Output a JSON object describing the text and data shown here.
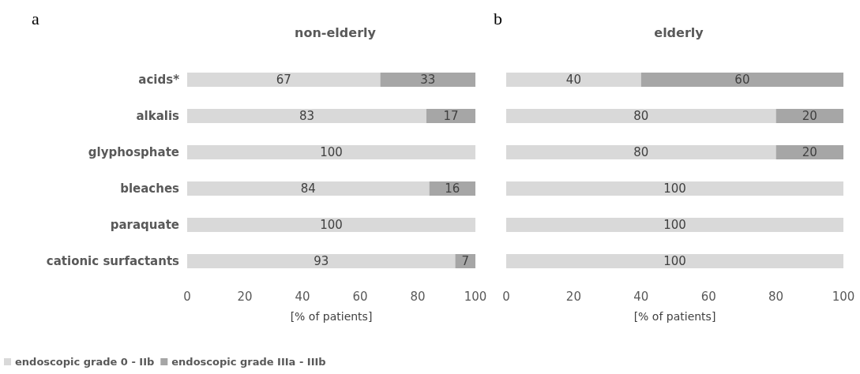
{
  "chart_data": [
    {
      "type": "bar",
      "orientation": "horizontal",
      "stacked": true,
      "title": "non-elderly",
      "xlabel": "[% of patients]",
      "annotations": [
        "a"
      ],
      "categories": [
        "acids*",
        "alkalis",
        "glyphosphate",
        "bleaches",
        "paraquate",
        "cationic surfactants"
      ],
      "series": [
        {
          "name": "endoscopic grade 0 - IIb",
          "color": "#d9d9d9",
          "values": [
            67,
            83,
            100,
            84,
            100,
            93
          ]
        },
        {
          "name": "endoscopic grade IIIa - IIIb",
          "color": "#a6a6a6",
          "values": [
            33,
            17,
            null,
            16,
            null,
            7
          ]
        }
      ],
      "xlim": [
        0,
        100
      ],
      "xticks": [
        0,
        20,
        40,
        60,
        80,
        100
      ],
      "data_labels": true,
      "grid": false,
      "legend": "bottom left"
    },
    {
      "type": "bar",
      "orientation": "horizontal",
      "stacked": true,
      "title": "elderly",
      "xlabel": "[% of patients]",
      "annotations": [
        "b"
      ],
      "categories": [
        null,
        null,
        null,
        null,
        null,
        null
      ],
      "series": [
        {
          "color": "#d9d9d9",
          "values": [
            40,
            80,
            80,
            100,
            100,
            100
          ]
        },
        {
          "color": "#a6a6a6",
          "values": [
            60,
            20,
            20,
            null,
            null,
            null
          ]
        }
      ],
      "xlim": [
        0,
        100
      ],
      "xticks": [
        0,
        20,
        40,
        60,
        80,
        100
      ],
      "data_labels": true,
      "grid": false,
      "legend": false
    }
  ]
}
